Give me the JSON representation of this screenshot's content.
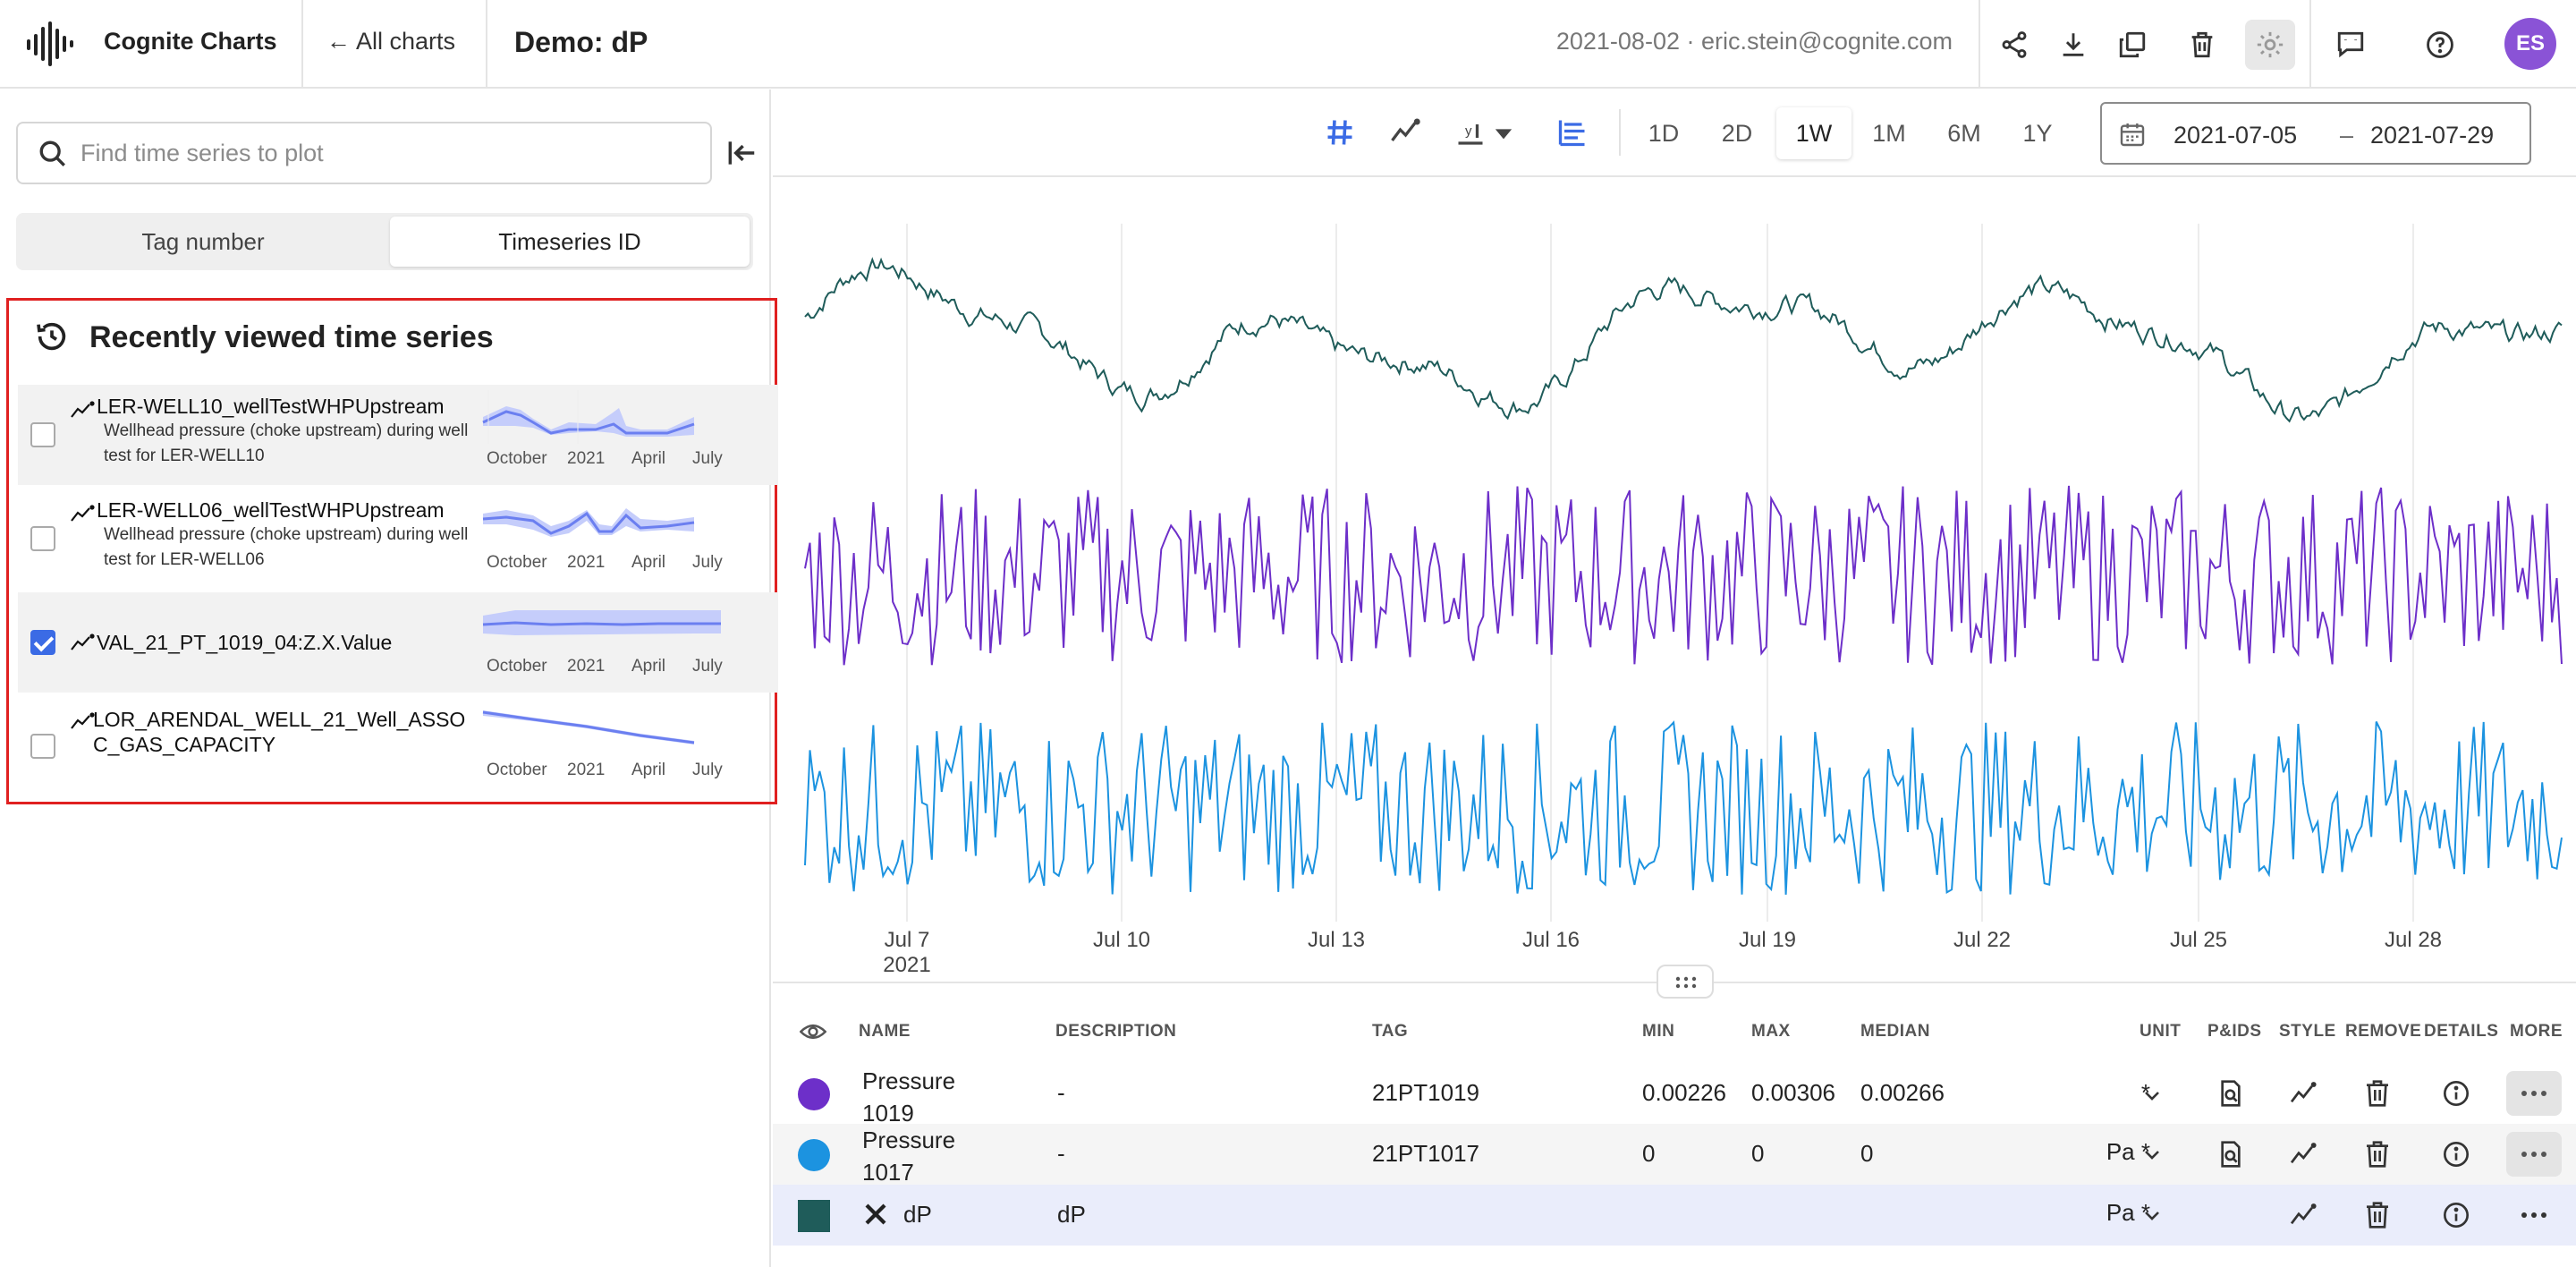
{
  "header": {
    "app_name": "Cognite Charts",
    "all_charts": "← All charts",
    "chart_title": "Demo: dP",
    "meta": "2021-08-02 · eric.stein@cognite.com",
    "avatar_initials": "ES",
    "actions": [
      "share-icon",
      "download-icon",
      "duplicate-icon",
      "delete-icon",
      "settings-icon",
      "feedback-icon",
      "help-icon"
    ]
  },
  "sidebar": {
    "search_placeholder": "Find time series to plot",
    "tabs": [
      "Tag number",
      "Timeseries ID"
    ],
    "active_tab": "Timeseries ID",
    "recent_title": "Recently viewed time series",
    "spark_ticks": [
      "October",
      "2021",
      "April",
      "July"
    ],
    "items": [
      {
        "name": "LER-WELL10_wellTestWHPUpstream",
        "description": "Wellhead pressure (choke upstream) during well test for LER-WELL10",
        "checked": false
      },
      {
        "name": "LER-WELL06_wellTestWHPUpstream",
        "description": "Wellhead pressure (choke upstream) during well test for LER-WELL06",
        "checked": false
      },
      {
        "name": "VAL_21_PT_1019_04:Z.X.Value",
        "description": "",
        "checked": true
      },
      {
        "name": "LOR_ARENDAL_WELL_21_Well_ASSO C_GAS_CAPACITY",
        "description": "",
        "checked": false
      }
    ]
  },
  "toolbar": {
    "ranges": [
      "1D",
      "2D",
      "1W",
      "1M",
      "6M",
      "1Y"
    ],
    "active_range": "1W",
    "date_from": "2021-07-05",
    "date_sep": "–",
    "date_to": "2021-07-29"
  },
  "chart_data": {
    "type": "line",
    "x_ticks": [
      "Jul 7",
      "Jul 10",
      "Jul 13",
      "Jul 16",
      "Jul 19",
      "Jul 22",
      "Jul 25",
      "Jul 28"
    ],
    "x_year": "2021",
    "xlim": [
      "2021-07-05",
      "2021-07-29"
    ],
    "grid": true,
    "series": [
      {
        "name": "dP",
        "color": "#1f5c5a",
        "stacked_row": 1
      },
      {
        "name": "Pressure 1019",
        "color": "#6d2fc9",
        "stacked_row": 2
      },
      {
        "name": "Pressure 1017",
        "color": "#1c93e0",
        "stacked_row": 3
      }
    ]
  },
  "table": {
    "headers": [
      "NAME",
      "DESCRIPTION",
      "TAG",
      "MIN",
      "MAX",
      "MEDIAN",
      "UNIT",
      "P&IDS",
      "STYLE",
      "REMOVE",
      "DETAILS",
      "MORE"
    ],
    "rows": [
      {
        "color": "#6d2fc9",
        "name": "Pressure 1019",
        "description": "-",
        "tag": "21PT1019",
        "min": "0.00226",
        "max": "0.00306",
        "median": "0.00266",
        "unit": "*"
      },
      {
        "color": "#1c93e0",
        "name": "Pressure 1017",
        "description": "-",
        "tag": "21PT1017",
        "min": "0",
        "max": "0",
        "median": "0",
        "unit": "Pa *"
      },
      {
        "color": "#1f5c5a",
        "name": "dP",
        "description": "dP",
        "tag": "",
        "min": "",
        "max": "",
        "median": "",
        "unit": "Pa *"
      }
    ]
  }
}
